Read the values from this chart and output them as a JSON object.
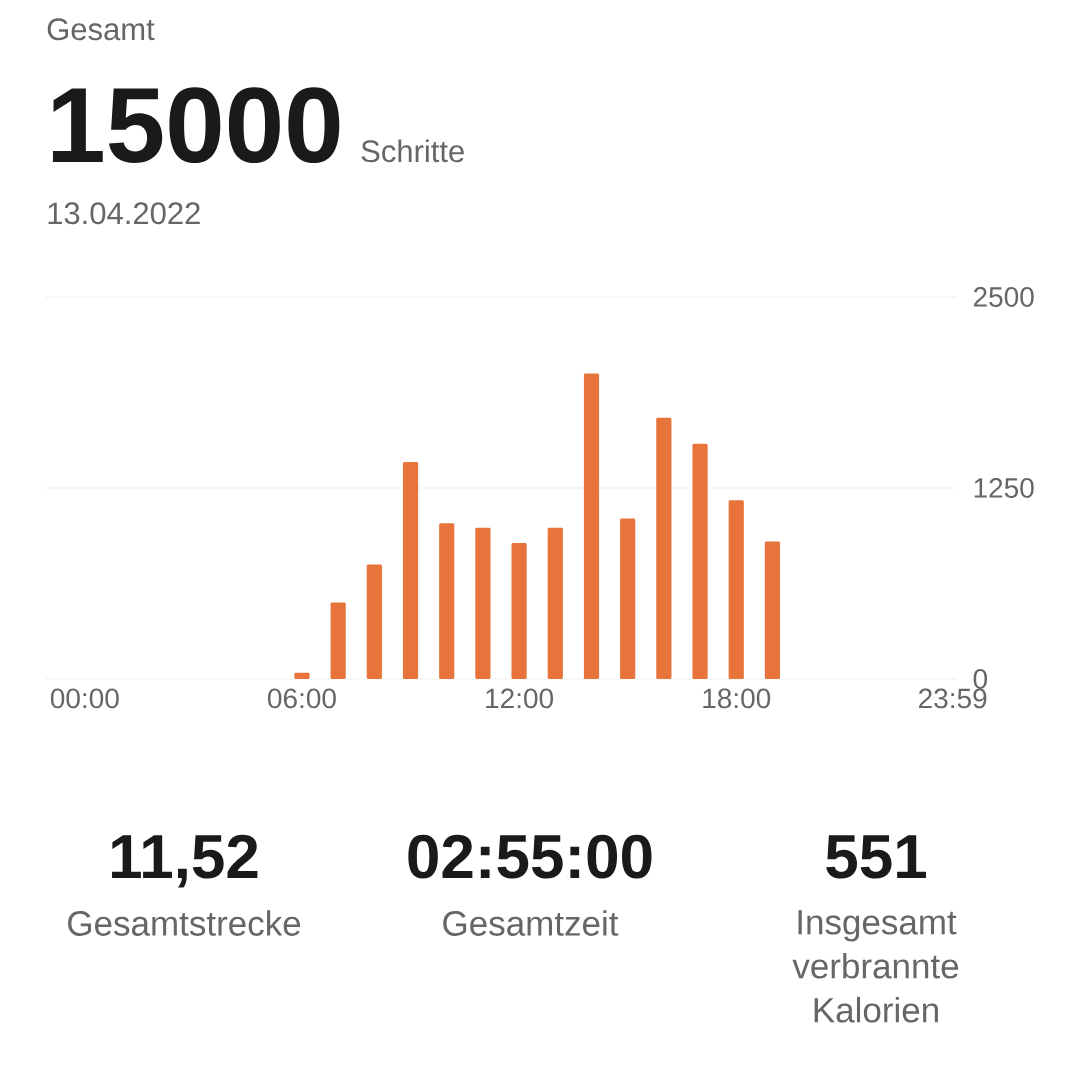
{
  "chart_data": [
    {
      "type": "bar",
      "title": "Gesamt",
      "annotations": [
        "15000",
        "Schritte"
      ],
      "subtitle": "13.04.2022",
      "x": [
        6,
        7,
        8,
        9,
        10,
        11,
        12,
        13,
        14,
        15,
        16,
        17,
        18,
        19
      ],
      "values": [
        40,
        500,
        750,
        1420,
        1020,
        990,
        890,
        990,
        2000,
        1050,
        1710,
        1540,
        1170,
        900
      ],
      "color": "#e8743b",
      "xlim": [
        -1.1,
        24.1
      ],
      "xticks": [
        {
          "value": 0,
          "label": "00:00"
        },
        {
          "value": 6,
          "label": "06:00"
        },
        {
          "value": 12,
          "label": "12:00"
        },
        {
          "value": 18,
          "label": "18:00"
        },
        {
          "value": 23.98,
          "label": "23:59"
        }
      ],
      "ylim": [
        0,
        2500
      ],
      "yticks": [
        0,
        1250,
        2500
      ],
      "grid": "y"
    },
    {
      "type": "other",
      "annotations": [
        "11,52",
        "Gesamtstrecke",
        "02:55:00",
        "Gesamtzeit",
        "551",
        "Insgesamt verbrannte Kalorien"
      ]
    }
  ]
}
